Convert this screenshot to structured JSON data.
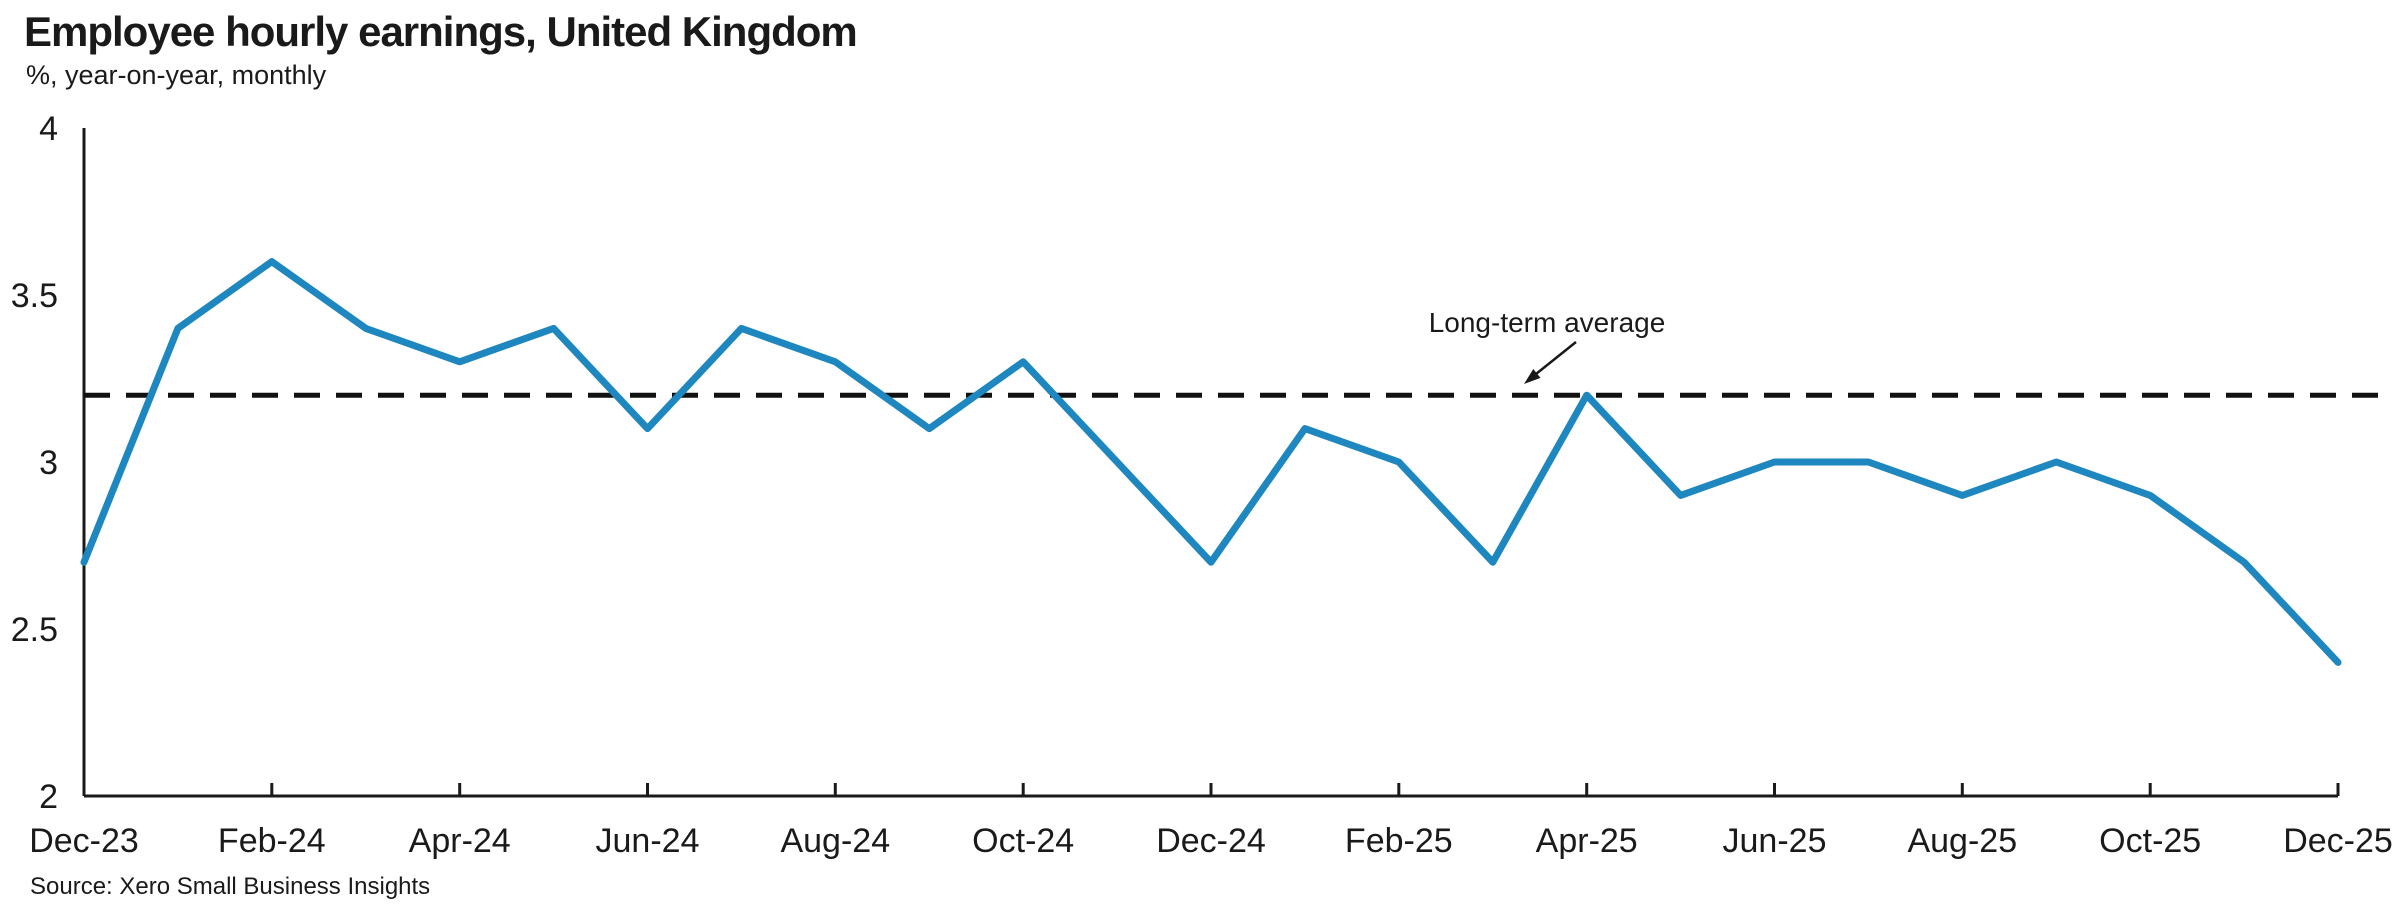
{
  "header": {
    "title": "Employee hourly earnings, United Kingdom",
    "subtitle": "%, year-on-year, monthly"
  },
  "annotation": {
    "label": "Long-term average"
  },
  "source": "Source: Xero Small Business Insights",
  "colors": {
    "line": "#1e87c0",
    "axis": "#1a1a1a",
    "dashed_line": "#111111",
    "text": "#1a1a1a"
  },
  "chart_data": {
    "type": "line",
    "title": "Employee hourly earnings, United Kingdom",
    "subtitle": "%, year-on-year, monthly",
    "unit": "%",
    "x": [
      "Dec-23",
      "Jan-24",
      "Feb-24",
      "Mar-24",
      "Apr-24",
      "May-24",
      "Jun-24",
      "Jul-24",
      "Aug-24",
      "Sep-24",
      "Oct-24",
      "Nov-24",
      "Dec-24",
      "Jan-25",
      "Feb-25",
      "Mar-25",
      "Apr-25",
      "May-25",
      "Jun-25",
      "Jul-25",
      "Aug-25",
      "Sep-25",
      "Oct-25",
      "Nov-25",
      "Dec-25"
    ],
    "values": [
      2.7,
      3.4,
      3.6,
      3.4,
      3.3,
      3.4,
      3.1,
      3.4,
      3.3,
      3.1,
      3.3,
      3.0,
      2.7,
      3.1,
      3.0,
      2.7,
      3.2,
      2.9,
      3.0,
      3.0,
      2.9,
      3.0,
      2.9,
      2.7,
      2.4
    ],
    "x_tick_labels": [
      "Dec-23",
      "Feb-24",
      "Apr-24",
      "Jun-24",
      "Aug-24",
      "Oct-24",
      "Dec-24",
      "Feb-25",
      "Apr-25",
      "Jun-25",
      "Aug-25",
      "Oct-25",
      "Dec-25"
    ],
    "x_tick_every": 2,
    "y_ticks": [
      2,
      2.5,
      3,
      3.5,
      4
    ],
    "ylim": [
      2,
      4
    ],
    "long_term_average": 3.2,
    "legend": "none",
    "grid": "off"
  }
}
